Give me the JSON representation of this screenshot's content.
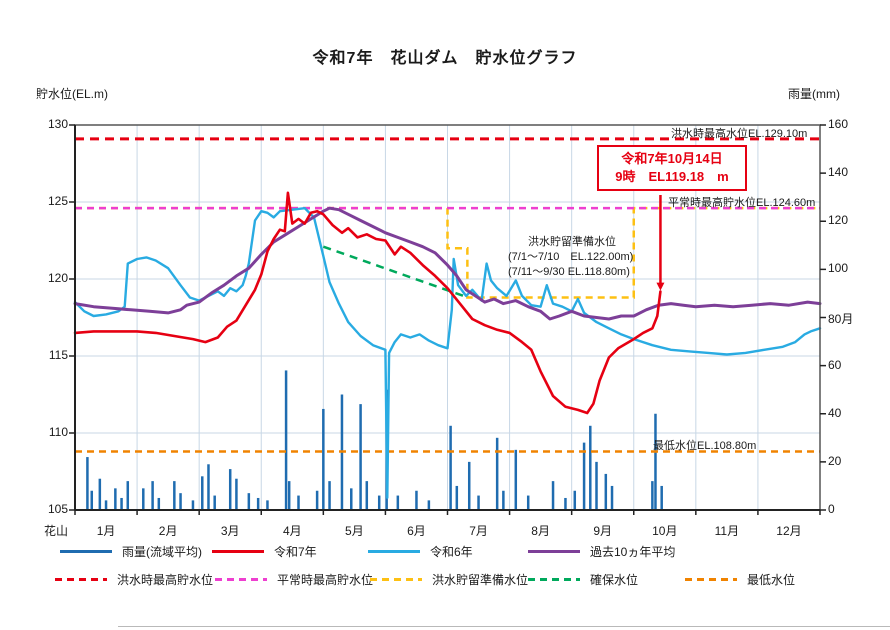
{
  "title": "令和7年　花山ダム　貯水位グラフ",
  "y_left": {
    "label": "貯水位(EL.m)",
    "ticks": [
      "130",
      "125",
      "120",
      "115",
      "110",
      "105"
    ]
  },
  "y_right": {
    "label": "雨量(mm)",
    "ticks": [
      "160",
      "140",
      "120",
      "100",
      "80月",
      "60",
      "40",
      "20",
      "0"
    ]
  },
  "x_axis": {
    "origin_label": "花山",
    "months": [
      "1月",
      "2月",
      "3月",
      "4月",
      "5月",
      "6月",
      "7月",
      "8月",
      "9月",
      "10月",
      "11月",
      "12月"
    ]
  },
  "callout": {
    "line1": "令和7年10月14日",
    "line2": "9時　EL119.18　m"
  },
  "ref_labels": {
    "flood_max": "洪水時最高水位EL.129.10m",
    "normal_max": "平常時最高貯水位EL.124.60m",
    "prep_title": "洪水貯留準備水位",
    "prep_line1": "(7/1～7/10　EL.122.00m)",
    "prep_line2": "(7/11～9/30 EL.118.80m)",
    "min": "最低水位EL.108.80m"
  },
  "legend": {
    "row1": [
      {
        "style": "solid",
        "color": "#1f6cb0",
        "label": "雨量(流域平均)"
      },
      {
        "style": "solid",
        "color": "#e60012",
        "label": "令和7年"
      },
      {
        "style": "solid",
        "color": "#29abe2",
        "label": "令和6年"
      },
      {
        "style": "solid",
        "color": "#7d3f98",
        "label": "過去10ヵ年平均"
      }
    ],
    "row2": [
      {
        "style": "dashed",
        "color": "#e60012",
        "label": "洪水時最高貯水位"
      },
      {
        "style": "dashed",
        "color": "#ee3fd0",
        "label": "平常時最高貯水位"
      },
      {
        "style": "dashed",
        "color": "#fdc013",
        "label": "洪水貯留準備水位"
      },
      {
        "style": "dashed",
        "color": "#00a95c",
        "label": "確保水位"
      },
      {
        "style": "dashed",
        "color": "#f08300",
        "label": "最低水位"
      }
    ]
  },
  "colors": {
    "rain_bar": "#1f6cb0",
    "r7": "#e60012",
    "r6": "#29abe2",
    "avg10": "#7d3f98",
    "flood_max": "#e60012",
    "normal_max": "#ee3fd0",
    "flood_prep": "#fdc013",
    "kakuho": "#00a95c",
    "min_level": "#f08300",
    "grid": "#c8d7e6",
    "frame": "#555555"
  },
  "chart_data": {
    "type": "line",
    "title": "令和7年　花山ダム　貯水位グラフ",
    "x_unit": "months_from_jan1",
    "x_range": [
      0,
      12
    ],
    "ylabel_left": "貯水位(EL.m)",
    "ylim_left": [
      105,
      130
    ],
    "ylabel_right": "雨量(mm)",
    "ylim_right": [
      0,
      160
    ],
    "grid": true,
    "legend_position": "bottom",
    "reference_lines": [
      {
        "name": "洪水時最高水位",
        "value": 129.1,
        "style": "dashed",
        "color": "#e60012"
      },
      {
        "name": "平常時最高貯水位",
        "value": 124.6,
        "style": "dashed",
        "color": "#ee3fd0"
      },
      {
        "name": "洪水貯留準備水位",
        "style": "dashed-step",
        "color": "#fdc013",
        "segments": [
          [
            0,
            124.6
          ],
          [
            6.0,
            124.6
          ],
          [
            6.0,
            122.0
          ],
          [
            6.32,
            122.0
          ],
          [
            6.32,
            118.8
          ],
          [
            9.0,
            118.8
          ],
          [
            9.0,
            124.6
          ],
          [
            12,
            124.6
          ]
        ],
        "note": "7/1～7/10 EL.122.00m, 7/11～9/30 EL.118.80m"
      },
      {
        "name": "確保水位",
        "style": "dashed",
        "color": "#00a95c",
        "segments": [
          [
            4.0,
            122.1
          ],
          [
            6.33,
            118.8
          ]
        ]
      },
      {
        "name": "最低水位",
        "value": 108.8,
        "style": "dashed",
        "color": "#f08300"
      }
    ],
    "highlight_point": {
      "series": "令和7年",
      "date": "令和7年10月14日 9時",
      "t": 9.43,
      "value": 119.18
    },
    "series": [
      {
        "name": "令和7年",
        "color": "#e60012",
        "points": [
          [
            0,
            116.5
          ],
          [
            0.3,
            116.6
          ],
          [
            0.6,
            116.6
          ],
          [
            0.9,
            116.6
          ],
          [
            1.0,
            116.6
          ],
          [
            1.3,
            116.5
          ],
          [
            1.6,
            116.3
          ],
          [
            1.9,
            116.1
          ],
          [
            2.1,
            115.9
          ],
          [
            2.3,
            116.2
          ],
          [
            2.45,
            116.9
          ],
          [
            2.6,
            117.3
          ],
          [
            2.75,
            118.3
          ],
          [
            2.9,
            119.3
          ],
          [
            3.0,
            120.3
          ],
          [
            3.1,
            121.8
          ],
          [
            3.2,
            122.6
          ],
          [
            3.3,
            123.2
          ],
          [
            3.38,
            123.1
          ],
          [
            3.43,
            125.6
          ],
          [
            3.5,
            123.6
          ],
          [
            3.6,
            123.9
          ],
          [
            3.7,
            123.6
          ],
          [
            3.8,
            124.3
          ],
          [
            3.9,
            124.4
          ],
          [
            4.0,
            124.2
          ],
          [
            4.15,
            123.5
          ],
          [
            4.3,
            123.0
          ],
          [
            4.4,
            123.3
          ],
          [
            4.55,
            122.7
          ],
          [
            4.7,
            122.9
          ],
          [
            4.85,
            122.6
          ],
          [
            5.0,
            122.5
          ],
          [
            5.15,
            121.6
          ],
          [
            5.25,
            122.1
          ],
          [
            5.4,
            121.7
          ],
          [
            5.6,
            120.9
          ],
          [
            5.8,
            120.2
          ],
          [
            6.0,
            119.4
          ],
          [
            6.2,
            118.4
          ],
          [
            6.4,
            117.4
          ],
          [
            6.6,
            117.0
          ],
          [
            6.8,
            116.7
          ],
          [
            7.0,
            116.5
          ],
          [
            7.2,
            115.9
          ],
          [
            7.35,
            115.4
          ],
          [
            7.5,
            114.0
          ],
          [
            7.7,
            112.4
          ],
          [
            7.9,
            111.7
          ],
          [
            8.1,
            111.5
          ],
          [
            8.25,
            111.3
          ],
          [
            8.35,
            111.9
          ],
          [
            8.45,
            113.4
          ],
          [
            8.6,
            114.9
          ],
          [
            8.75,
            115.5
          ],
          [
            9.0,
            116.1
          ],
          [
            9.15,
            116.5
          ],
          [
            9.3,
            116.8
          ],
          [
            9.38,
            117.6
          ],
          [
            9.43,
            119.18
          ]
        ]
      },
      {
        "name": "令和6年",
        "color": "#29abe2",
        "points": [
          [
            0,
            118.5
          ],
          [
            0.15,
            117.9
          ],
          [
            0.3,
            117.6
          ],
          [
            0.5,
            117.7
          ],
          [
            0.7,
            117.9
          ],
          [
            0.8,
            118.2
          ],
          [
            0.85,
            121.0
          ],
          [
            1.0,
            121.3
          ],
          [
            1.15,
            121.4
          ],
          [
            1.3,
            121.2
          ],
          [
            1.5,
            120.7
          ],
          [
            1.7,
            119.6
          ],
          [
            1.85,
            118.8
          ],
          [
            2.0,
            118.6
          ],
          [
            2.15,
            118.9
          ],
          [
            2.3,
            119.2
          ],
          [
            2.4,
            118.9
          ],
          [
            2.5,
            119.4
          ],
          [
            2.6,
            119.2
          ],
          [
            2.7,
            119.6
          ],
          [
            2.75,
            120.2
          ],
          [
            2.8,
            121.0
          ],
          [
            2.9,
            123.8
          ],
          [
            3.0,
            124.4
          ],
          [
            3.1,
            124.3
          ],
          [
            3.2,
            124.0
          ],
          [
            3.3,
            124.4
          ],
          [
            3.5,
            124.5
          ],
          [
            3.7,
            124.6
          ],
          [
            3.85,
            124.0
          ],
          [
            4.0,
            121.5
          ],
          [
            4.1,
            119.8
          ],
          [
            4.25,
            118.4
          ],
          [
            4.4,
            117.2
          ],
          [
            4.6,
            116.3
          ],
          [
            4.8,
            115.7
          ],
          [
            5.0,
            115.4
          ],
          [
            5.03,
            105.8
          ],
          [
            5.06,
            115.2
          ],
          [
            5.15,
            115.9
          ],
          [
            5.25,
            116.4
          ],
          [
            5.4,
            116.2
          ],
          [
            5.55,
            116.4
          ],
          [
            5.7,
            116.0
          ],
          [
            5.85,
            115.7
          ],
          [
            6.0,
            115.5
          ],
          [
            6.07,
            118.0
          ],
          [
            6.1,
            121.3
          ],
          [
            6.17,
            119.6
          ],
          [
            6.3,
            118.9
          ],
          [
            6.4,
            119.3
          ],
          [
            6.55,
            118.6
          ],
          [
            6.63,
            121.0
          ],
          [
            6.7,
            119.9
          ],
          [
            6.8,
            119.4
          ],
          [
            6.95,
            118.9
          ],
          [
            7.1,
            119.9
          ],
          [
            7.2,
            118.9
          ],
          [
            7.35,
            118.3
          ],
          [
            7.5,
            118.2
          ],
          [
            7.6,
            119.6
          ],
          [
            7.7,
            118.4
          ],
          [
            7.85,
            118.2
          ],
          [
            8.0,
            117.9
          ],
          [
            8.1,
            118.7
          ],
          [
            8.2,
            117.8
          ],
          [
            8.4,
            117.2
          ],
          [
            8.6,
            116.8
          ],
          [
            8.8,
            116.4
          ],
          [
            9.0,
            116.1
          ],
          [
            9.3,
            115.7
          ],
          [
            9.6,
            115.4
          ],
          [
            9.9,
            115.3
          ],
          [
            10.2,
            115.2
          ],
          [
            10.5,
            115.1
          ],
          [
            10.8,
            115.2
          ],
          [
            11.1,
            115.4
          ],
          [
            11.4,
            115.6
          ],
          [
            11.6,
            115.9
          ],
          [
            11.75,
            116.4
          ],
          [
            11.85,
            116.6
          ],
          [
            12,
            116.8
          ]
        ]
      },
      {
        "name": "過去10ヵ年平均",
        "color": "#7d3f98",
        "points": [
          [
            0,
            118.4
          ],
          [
            0.3,
            118.2
          ],
          [
            0.6,
            118.1
          ],
          [
            0.9,
            118.0
          ],
          [
            1.2,
            117.9
          ],
          [
            1.5,
            117.8
          ],
          [
            1.7,
            118.0
          ],
          [
            1.8,
            118.3
          ],
          [
            2.0,
            118.5
          ],
          [
            2.2,
            119.1
          ],
          [
            2.4,
            119.6
          ],
          [
            2.6,
            120.2
          ],
          [
            2.8,
            120.7
          ],
          [
            3.0,
            121.6
          ],
          [
            3.2,
            122.4
          ],
          [
            3.4,
            122.9
          ],
          [
            3.6,
            123.4
          ],
          [
            3.8,
            123.9
          ],
          [
            4.0,
            124.4
          ],
          [
            4.1,
            124.6
          ],
          [
            4.25,
            124.5
          ],
          [
            4.4,
            124.2
          ],
          [
            4.6,
            123.8
          ],
          [
            4.8,
            123.4
          ],
          [
            5.0,
            123.0
          ],
          [
            5.2,
            122.7
          ],
          [
            5.4,
            122.4
          ],
          [
            5.6,
            122.1
          ],
          [
            5.8,
            121.7
          ],
          [
            6.0,
            120.9
          ],
          [
            6.15,
            120.2
          ],
          [
            6.3,
            119.3
          ],
          [
            6.45,
            118.9
          ],
          [
            6.6,
            118.5
          ],
          [
            6.75,
            118.7
          ],
          [
            6.9,
            118.4
          ],
          [
            7.1,
            118.6
          ],
          [
            7.3,
            118.2
          ],
          [
            7.5,
            117.9
          ],
          [
            7.65,
            117.4
          ],
          [
            7.8,
            117.6
          ],
          [
            8.0,
            117.9
          ],
          [
            8.2,
            117.6
          ],
          [
            8.4,
            117.5
          ],
          [
            8.6,
            117.4
          ],
          [
            8.8,
            117.6
          ],
          [
            9.0,
            117.6
          ],
          [
            9.2,
            118.0
          ],
          [
            9.4,
            118.3
          ],
          [
            9.6,
            118.4
          ],
          [
            9.8,
            118.3
          ],
          [
            10.0,
            118.2
          ],
          [
            10.3,
            118.3
          ],
          [
            10.6,
            118.2
          ],
          [
            10.9,
            118.3
          ],
          [
            11.2,
            118.4
          ],
          [
            11.5,
            118.3
          ],
          [
            11.8,
            118.5
          ],
          [
            12,
            118.4
          ]
        ]
      }
    ],
    "bars": {
      "name": "雨量(流域平均)",
      "color": "#1f6cb0",
      "unit": "mm",
      "points": [
        [
          0.2,
          22
        ],
        [
          0.27,
          8
        ],
        [
          0.4,
          13
        ],
        [
          0.5,
          4
        ],
        [
          0.65,
          9
        ],
        [
          0.75,
          5
        ],
        [
          0.85,
          12
        ],
        [
          1.1,
          9
        ],
        [
          1.25,
          12
        ],
        [
          1.35,
          5
        ],
        [
          1.6,
          12
        ],
        [
          1.7,
          7
        ],
        [
          1.9,
          4
        ],
        [
          2.05,
          14
        ],
        [
          2.15,
          19
        ],
        [
          2.25,
          6
        ],
        [
          2.5,
          17
        ],
        [
          2.6,
          13
        ],
        [
          2.8,
          7
        ],
        [
          2.95,
          5
        ],
        [
          3.1,
          4
        ],
        [
          3.4,
          58
        ],
        [
          3.45,
          12
        ],
        [
          3.6,
          6
        ],
        [
          3.9,
          8
        ],
        [
          4.0,
          42
        ],
        [
          4.1,
          12
        ],
        [
          4.3,
          48
        ],
        [
          4.45,
          9
        ],
        [
          4.6,
          44
        ],
        [
          4.7,
          12
        ],
        [
          4.9,
          6
        ],
        [
          5.02,
          50
        ],
        [
          5.2,
          6
        ],
        [
          5.5,
          8
        ],
        [
          5.7,
          4
        ],
        [
          6.05,
          35
        ],
        [
          6.15,
          10
        ],
        [
          6.35,
          20
        ],
        [
          6.5,
          6
        ],
        [
          6.8,
          30
        ],
        [
          6.9,
          8
        ],
        [
          7.1,
          25
        ],
        [
          7.3,
          6
        ],
        [
          7.7,
          12
        ],
        [
          7.9,
          5
        ],
        [
          8.05,
          8
        ],
        [
          8.2,
          28
        ],
        [
          8.3,
          35
        ],
        [
          8.4,
          20
        ],
        [
          8.55,
          15
        ],
        [
          8.65,
          10
        ],
        [
          9.3,
          12
        ],
        [
          9.35,
          40
        ],
        [
          9.45,
          10
        ]
      ]
    }
  }
}
